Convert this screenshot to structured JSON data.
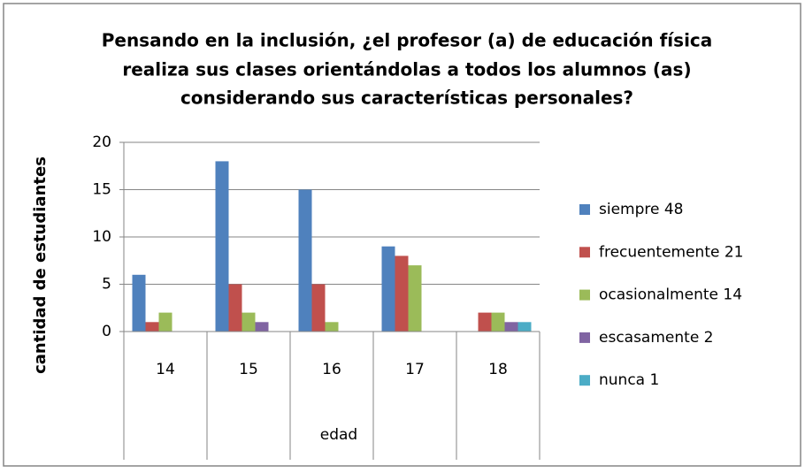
{
  "chart_data": {
    "type": "bar",
    "title": [
      "Pensando en la inclusión, ¿el profesor (a) de educación física",
      "realiza sus clases orientándolas a todos los alumnos (as)",
      "considerando sus características personales?"
    ],
    "x_label": "edad",
    "y_label": "cantidad de estudiantes",
    "categories": [
      "14",
      "15",
      "16",
      "17",
      "18"
    ],
    "series": [
      {
        "name": "siempre 48",
        "color": "#4f81bd",
        "values": [
          6,
          18,
          15,
          9,
          0
        ]
      },
      {
        "name": "frecuentemente 21",
        "color": "#c0504d",
        "values": [
          1,
          5,
          5,
          8,
          2
        ]
      },
      {
        "name": "ocasionalmente 14",
        "color": "#9bbb59",
        "values": [
          2,
          2,
          1,
          7,
          2
        ]
      },
      {
        "name": "escasamente 2",
        "color": "#8064a2",
        "values": [
          0,
          1,
          0,
          0,
          1
        ]
      },
      {
        "name": "nunca 1",
        "color": "#4bacc6",
        "values": [
          0,
          0,
          0,
          0,
          1
        ]
      }
    ],
    "ylim": [
      0,
      20
    ],
    "yticks": [
      0,
      5,
      10,
      15,
      20
    ],
    "grid": true,
    "legend": "right"
  }
}
